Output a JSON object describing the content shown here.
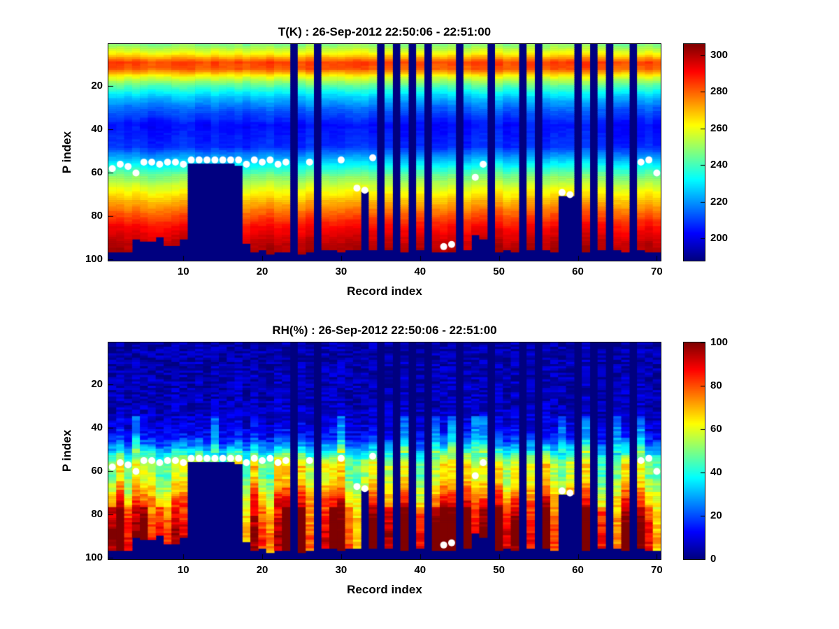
{
  "figure": {
    "background": "#ffffff",
    "nodata_color": "#000080",
    "marker_color": "#ffffff"
  },
  "chart_data": [
    {
      "type": "heatmap",
      "variable": "T",
      "title": "T(K) : 26-Sep-2012 22:50:06 - 22:51:00",
      "xlabel": "Record index",
      "ylabel": "P index",
      "x_range": [
        1,
        70
      ],
      "y_range": [
        1,
        100
      ],
      "y_axis_reversed": true,
      "x_ticks": [
        10,
        20,
        30,
        40,
        50,
        60,
        70
      ],
      "y_ticks": [
        20,
        40,
        60,
        80,
        100
      ],
      "colormap": "jet",
      "clim": [
        188,
        306
      ],
      "colorbar_ticks": [
        200,
        220,
        240,
        260,
        280,
        300
      ],
      "profile": {
        "p_index": [
          1,
          5,
          9,
          12,
          16,
          20,
          25,
          30,
          38,
          48,
          55,
          62,
          70,
          78,
          85,
          93,
          100
        ],
        "value": [
          248,
          262,
          284,
          281,
          258,
          242,
          226,
          215,
          204,
          208,
          228,
          248,
          264,
          279,
          291,
          299,
          303
        ]
      }
    },
    {
      "type": "heatmap",
      "variable": "RH",
      "title": "RH(%) : 26-Sep-2012 22:50:06 - 22:51:00",
      "xlabel": "Record index",
      "ylabel": "P index",
      "x_range": [
        1,
        70
      ],
      "y_range": [
        1,
        100
      ],
      "y_axis_reversed": true,
      "x_ticks": [
        10,
        20,
        30,
        40,
        50,
        60,
        70
      ],
      "y_ticks": [
        20,
        40,
        60,
        80,
        100
      ],
      "colormap": "jet",
      "clim": [
        0,
        100
      ],
      "colorbar_ticks": [
        0,
        20,
        40,
        60,
        80,
        100
      ],
      "profile": {
        "p_index": [
          1,
          30,
          38,
          44,
          48,
          52,
          55,
          58,
          62,
          68,
          75,
          82,
          90,
          96,
          100
        ],
        "value": [
          4,
          6,
          9,
          14,
          25,
          40,
          52,
          58,
          55,
          65,
          78,
          85,
          90,
          88,
          84
        ]
      }
    }
  ],
  "records": {
    "count": 70,
    "missing": [
      24,
      27,
      35,
      37,
      39,
      41,
      45,
      49,
      53,
      55,
      60,
      62,
      64,
      67
    ],
    "bottom_p_index": [
      96,
      96,
      96,
      90,
      91,
      91,
      89,
      93,
      93,
      90,
      55,
      55,
      55,
      55,
      55,
      55,
      56,
      92,
      96,
      95,
      97,
      96,
      96,
      0,
      97,
      96,
      0,
      95,
      95,
      96,
      95,
      95,
      68,
      95,
      0,
      95,
      0,
      96,
      0,
      95,
      0,
      96,
      96,
      96,
      0,
      95,
      88,
      90,
      0,
      96,
      95,
      96,
      0,
      95,
      0,
      95,
      96,
      70,
      70,
      0,
      96,
      0,
      95,
      0,
      95,
      96,
      0,
      95,
      96,
      96
    ],
    "marker_dots": [
      [
        1,
        58
      ],
      [
        2,
        56
      ],
      [
        3,
        57
      ],
      [
        4,
        60
      ],
      [
        5,
        55
      ],
      [
        6,
        55
      ],
      [
        7,
        56
      ],
      [
        8,
        55
      ],
      [
        9,
        55
      ],
      [
        10,
        56
      ],
      [
        11,
        54
      ],
      [
        12,
        54
      ],
      [
        13,
        54
      ],
      [
        14,
        54
      ],
      [
        15,
        54
      ],
      [
        16,
        54
      ],
      [
        17,
        54
      ],
      [
        18,
        56
      ],
      [
        19,
        54
      ],
      [
        20,
        55
      ],
      [
        21,
        54
      ],
      [
        22,
        56
      ],
      [
        23,
        55
      ],
      [
        26,
        55
      ],
      [
        30,
        54
      ],
      [
        32,
        67
      ],
      [
        33,
        68
      ],
      [
        34,
        53
      ],
      [
        43,
        94
      ],
      [
        44,
        93
      ],
      [
        47,
        62
      ],
      [
        48,
        56
      ],
      [
        58,
        69
      ],
      [
        59,
        70
      ],
      [
        68,
        55
      ],
      [
        69,
        54
      ],
      [
        70,
        60
      ]
    ]
  }
}
